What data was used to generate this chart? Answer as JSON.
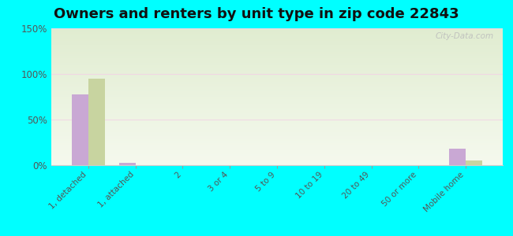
{
  "title": "Owners and renters by unit type in zip code 22843",
  "categories": [
    "1, detached",
    "1, attached",
    "2",
    "3 or 4",
    "5 to 9",
    "10 to 19",
    "20 to 49",
    "50 or more",
    "Mobile home"
  ],
  "owner_values": [
    78,
    3,
    0,
    0,
    0,
    0,
    0,
    0,
    18
  ],
  "renter_values": [
    95,
    0,
    0,
    0,
    0,
    0,
    0,
    0,
    5
  ],
  "owner_color": "#c9a8d4",
  "renter_color": "#c8d4a0",
  "ylim": [
    0,
    150
  ],
  "yticks": [
    0,
    50,
    100,
    150
  ],
  "ytick_labels": [
    "0%",
    "50%",
    "100%",
    "150%"
  ],
  "background_color": "#00ffff",
  "plot_bg_color": "#eef4e6",
  "grid_color": "#f0d8e4",
  "watermark": "City-Data.com",
  "bar_width": 0.35,
  "title_fontsize": 13
}
